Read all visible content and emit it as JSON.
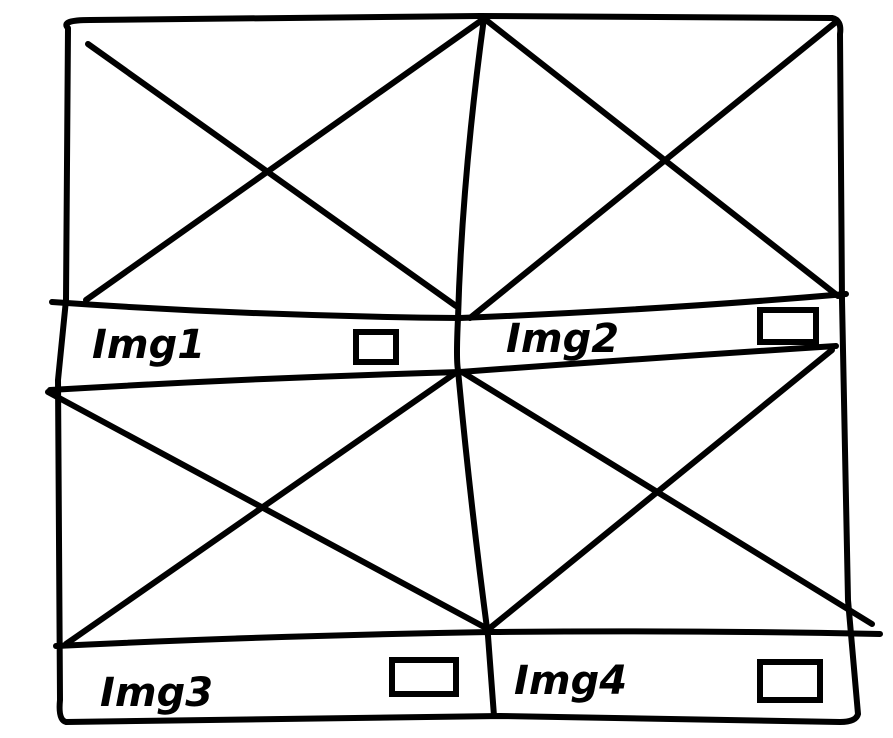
{
  "cells": [
    {
      "label": "Img1"
    },
    {
      "label": "Img2"
    },
    {
      "label": "Img3"
    },
    {
      "label": "Img4"
    }
  ],
  "colors": {
    "stroke": "#000000",
    "background": "#ffffff"
  }
}
